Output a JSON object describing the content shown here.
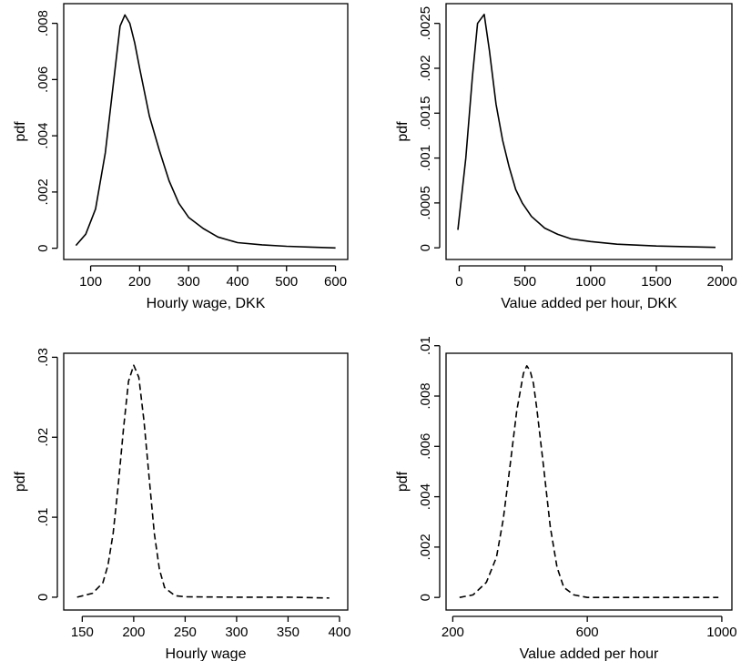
{
  "chart_data": [
    {
      "type": "line",
      "xlabel": "Hourly wage, DKK",
      "ylabel": "pdf",
      "xlim": [
        45,
        625
      ],
      "ylim": [
        -0.0004,
        0.0087
      ],
      "xticks": [
        100,
        200,
        300,
        400,
        500,
        600
      ],
      "xtick_labels": [
        "100",
        "200",
        "300",
        "400",
        "500",
        "600"
      ],
      "yticks": [
        0,
        0.002,
        0.004,
        0.006,
        0.008
      ],
      "ytick_labels": [
        "0",
        ".002",
        ".004",
        ".006",
        ".008"
      ],
      "line_style": "solid",
      "series": [
        {
          "x": [
            70,
            90,
            110,
            130,
            150,
            160,
            170,
            180,
            190,
            200,
            220,
            240,
            260,
            280,
            300,
            330,
            360,
            400,
            450,
            500,
            550,
            600
          ],
          "y": [
            0.0001,
            0.0005,
            0.0014,
            0.0034,
            0.0064,
            0.0079,
            0.0083,
            0.008,
            0.0073,
            0.0064,
            0.0047,
            0.0035,
            0.0024,
            0.0016,
            0.0011,
            0.0007,
            0.0004,
            0.0002,
            0.00012,
            7e-05,
            4e-05,
            1e-05
          ]
        }
      ]
    },
    {
      "type": "line",
      "xlabel": "Value added per hour, DKK",
      "ylabel": "pdf",
      "xlim": [
        -100,
        2075
      ],
      "ylim": [
        -0.00013,
        0.00272
      ],
      "xticks": [
        0,
        500,
        1000,
        1500,
        2000
      ],
      "xtick_labels": [
        "0",
        "500",
        "1000",
        "1500",
        "2000"
      ],
      "yticks": [
        0,
        0.0005,
        0.001,
        0.0015,
        0.002,
        0.0025
      ],
      "ytick_labels": [
        "0",
        ".0005",
        ".001",
        ".0015",
        ".002",
        ".0025"
      ],
      "line_style": "solid",
      "series": [
        {
          "x": [
            -10,
            50,
            100,
            140,
            190,
            230,
            280,
            330,
            380,
            430,
            480,
            550,
            650,
            750,
            850,
            1000,
            1200,
            1500,
            1800,
            1950
          ],
          "y": [
            0.0002,
            0.001,
            0.0019,
            0.0025,
            0.0026,
            0.0022,
            0.0016,
            0.0012,
            0.0009,
            0.00065,
            0.0005,
            0.00035,
            0.00022,
            0.00015,
            0.0001,
            7e-05,
            4e-05,
            2e-05,
            1e-05,
            5e-06
          ]
        }
      ]
    },
    {
      "type": "line",
      "xlabel": "Hourly wage",
      "ylabel": "pdf",
      "xlim": [
        132,
        408
      ],
      "ylim": [
        -0.0016,
        0.0305
      ],
      "xticks": [
        150,
        200,
        250,
        300,
        350,
        400
      ],
      "xtick_labels": [
        "150",
        "200",
        "250",
        "300",
        "350",
        "400"
      ],
      "yticks": [
        0,
        0.01,
        0.02,
        0.03
      ],
      "ytick_labels": [
        "0",
        ".01",
        ".02",
        ".03"
      ],
      "line_style": "dashed",
      "series": [
        {
          "x": [
            145,
            160,
            170,
            175,
            180,
            185,
            190,
            195,
            200,
            205,
            210,
            215,
            220,
            225,
            230,
            240,
            250,
            300,
            350,
            390
          ],
          "y": [
            0,
            0.0005,
            0.0018,
            0.004,
            0.008,
            0.014,
            0.021,
            0.027,
            0.029,
            0.0275,
            0.022,
            0.015,
            0.008,
            0.0035,
            0.0012,
            0.0002,
            5e-05,
            0,
            0,
            -0.0001
          ]
        }
      ]
    },
    {
      "type": "line",
      "xlabel": "Value added per hour",
      "ylabel": "pdf",
      "xlim": [
        180,
        1030
      ],
      "ylim": [
        -0.0005,
        0.0097
      ],
      "xticks": [
        200,
        600,
        1000
      ],
      "xtick_labels": [
        "200",
        "600",
        "1000"
      ],
      "yticks": [
        0,
        0.002,
        0.004,
        0.006,
        0.008,
        0.01
      ],
      "ytick_labels": [
        "0",
        ".002",
        ".004",
        ".006",
        ".008",
        ".01"
      ],
      "line_style": "dashed",
      "series": [
        {
          "x": [
            220,
            260,
            300,
            330,
            350,
            370,
            390,
            410,
            420,
            430,
            440,
            450,
            470,
            490,
            510,
            530,
            560,
            600,
            700,
            800,
            900,
            990
          ],
          "y": [
            0,
            0.0001,
            0.0006,
            0.0016,
            0.0031,
            0.0052,
            0.0074,
            0.0089,
            0.0092,
            0.009,
            0.0085,
            0.0075,
            0.0052,
            0.0028,
            0.0012,
            0.0004,
            0.0001,
            0,
            0,
            0,
            0,
            0
          ]
        }
      ]
    }
  ]
}
